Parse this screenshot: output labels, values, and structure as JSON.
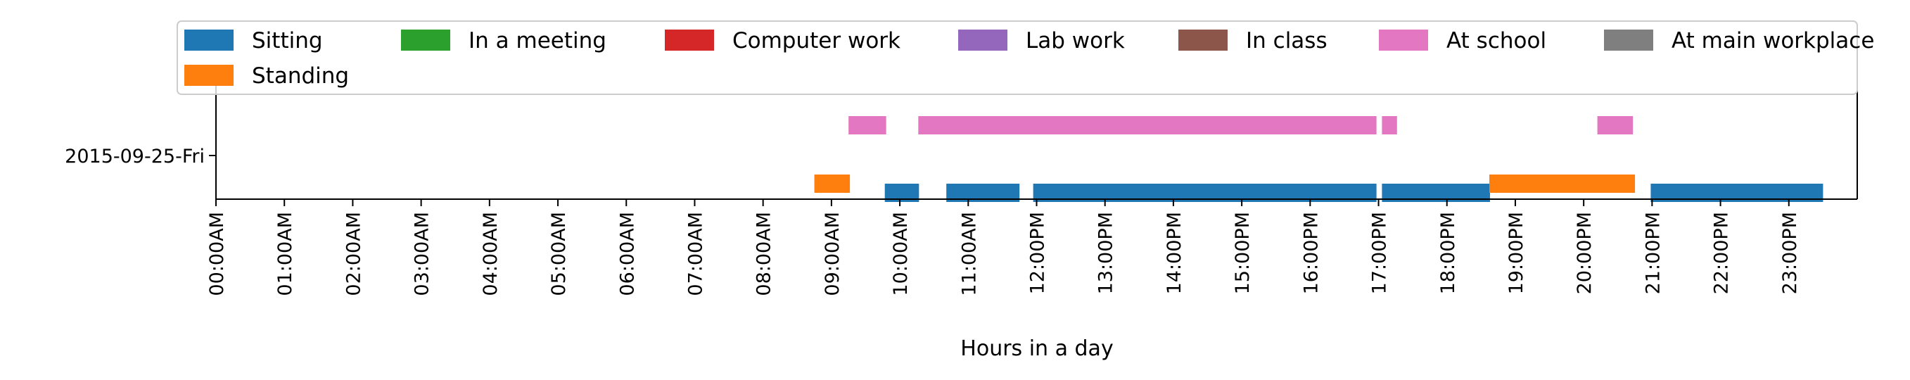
{
  "chart_data": {
    "type": "timeline",
    "xlabel": "Hours in a day",
    "ylabel": "",
    "xlim": [
      0,
      24
    ],
    "x_ticks": [
      {
        "value": 0,
        "label": "00:00AM"
      },
      {
        "value": 1,
        "label": "01:00AM"
      },
      {
        "value": 2,
        "label": "02:00AM"
      },
      {
        "value": 3,
        "label": "03:00AM"
      },
      {
        "value": 4,
        "label": "04:00AM"
      },
      {
        "value": 5,
        "label": "05:00AM"
      },
      {
        "value": 6,
        "label": "06:00AM"
      },
      {
        "value": 7,
        "label": "07:00AM"
      },
      {
        "value": 8,
        "label": "08:00AM"
      },
      {
        "value": 9,
        "label": "09:00AM"
      },
      {
        "value": 10,
        "label": "10:00AM"
      },
      {
        "value": 11,
        "label": "11:00AM"
      },
      {
        "value": 12,
        "label": "12:00PM"
      },
      {
        "value": 13,
        "label": "13:00PM"
      },
      {
        "value": 14,
        "label": "14:00PM"
      },
      {
        "value": 15,
        "label": "15:00PM"
      },
      {
        "value": 16,
        "label": "16:00PM"
      },
      {
        "value": 17,
        "label": "17:00PM"
      },
      {
        "value": 18,
        "label": "18:00PM"
      },
      {
        "value": 19,
        "label": "19:00PM"
      },
      {
        "value": 20,
        "label": "20:00PM"
      },
      {
        "value": 21,
        "label": "21:00PM"
      },
      {
        "value": 22,
        "label": "22:00PM"
      },
      {
        "value": 23,
        "label": "23:00PM"
      }
    ],
    "y_ticks": [
      "2015-09-25-Fri"
    ],
    "legend_position": "top",
    "series": [
      {
        "name": "Sitting",
        "color": "#1f77b4",
        "intervals": [
          [
            9.78,
            10.28
          ],
          [
            10.68,
            11.75
          ],
          [
            11.95,
            16.97
          ],
          [
            17.05,
            18.63
          ],
          [
            20.98,
            23.5
          ]
        ]
      },
      {
        "name": "In a meeting",
        "color": "#2ca02c",
        "intervals": []
      },
      {
        "name": "Computer work",
        "color": "#d62728",
        "intervals": []
      },
      {
        "name": "Lab work",
        "color": "#9467bd",
        "intervals": []
      },
      {
        "name": "In class",
        "color": "#8c564b",
        "intervals": []
      },
      {
        "name": "At school",
        "color": "#e377c2",
        "intervals": [
          [
            9.25,
            9.8
          ],
          [
            10.27,
            16.97
          ],
          [
            17.05,
            17.27
          ],
          [
            20.2,
            20.72
          ]
        ]
      },
      {
        "name": "At main workplace",
        "color": "#7f7f7f",
        "intervals": []
      },
      {
        "name": "Standing",
        "color": "#ff7f0e",
        "intervals": [
          [
            8.75,
            9.27
          ],
          [
            18.62,
            20.75
          ]
        ]
      }
    ]
  }
}
